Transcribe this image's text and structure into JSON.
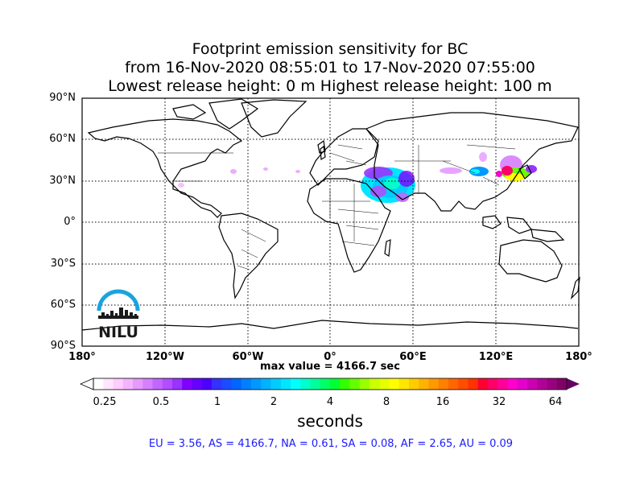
{
  "title": {
    "line1": "Footprint emission sensitivity for BC",
    "line2": "from 16-Nov-2020 08:55:01 to 17-Nov-2020 07:55:00",
    "line3": "Lowest release height: 0 m       Highest release height: 100 m"
  },
  "map": {
    "lat_labels": [
      "90°N",
      "60°N",
      "30°N",
      "0°",
      "30°S",
      "60°S",
      "90°S"
    ],
    "lon_labels": [
      "180°",
      "120°W",
      "60°W",
      "0°",
      "60°E",
      "120°E",
      "180°"
    ],
    "grid": true,
    "projection": "equirectangular"
  },
  "max_value": "max value = 4166.7 sec",
  "colorbar": {
    "title": "seconds",
    "tick_labels": [
      "0.25",
      "0.5",
      "1",
      "2",
      "4",
      "8",
      "16",
      "32",
      "64"
    ],
    "extend": "both",
    "colors": [
      "#ffffff",
      "#ffe6ff",
      "#ffccff",
      "#f5b3ff",
      "#e699ff",
      "#d680ff",
      "#c266ff",
      "#b34dff",
      "#9933ff",
      "#8000ff",
      "#6600ff",
      "#4d00ff",
      "#3333ff",
      "#1a4dff",
      "#0066ff",
      "#0080ff",
      "#0099ff",
      "#00b3ff",
      "#00ccff",
      "#00e6ff",
      "#00ffff",
      "#00ffcc",
      "#00ff99",
      "#00ff66",
      "#00ff33",
      "#33ff00",
      "#66ff00",
      "#99ff00",
      "#ccff00",
      "#e6ff00",
      "#ffff00",
      "#ffe600",
      "#ffcc00",
      "#ffb300",
      "#ff9900",
      "#ff8000",
      "#ff6600",
      "#ff4d00",
      "#ff3300",
      "#ff0033",
      "#ff0066",
      "#ff0099",
      "#ff00cc",
      "#e600cc",
      "#cc00b3",
      "#b30099",
      "#990080",
      "#800066"
    ],
    "over_color": "#660066"
  },
  "regions_text": "EU = 3.56,  AS = 4166.7,  NA = 0.61,  SA = 0.08,  AF = 2.65,  AU = 0.09",
  "logo": {
    "text": "NILU",
    "arc_color": "#1aa3e0"
  }
}
